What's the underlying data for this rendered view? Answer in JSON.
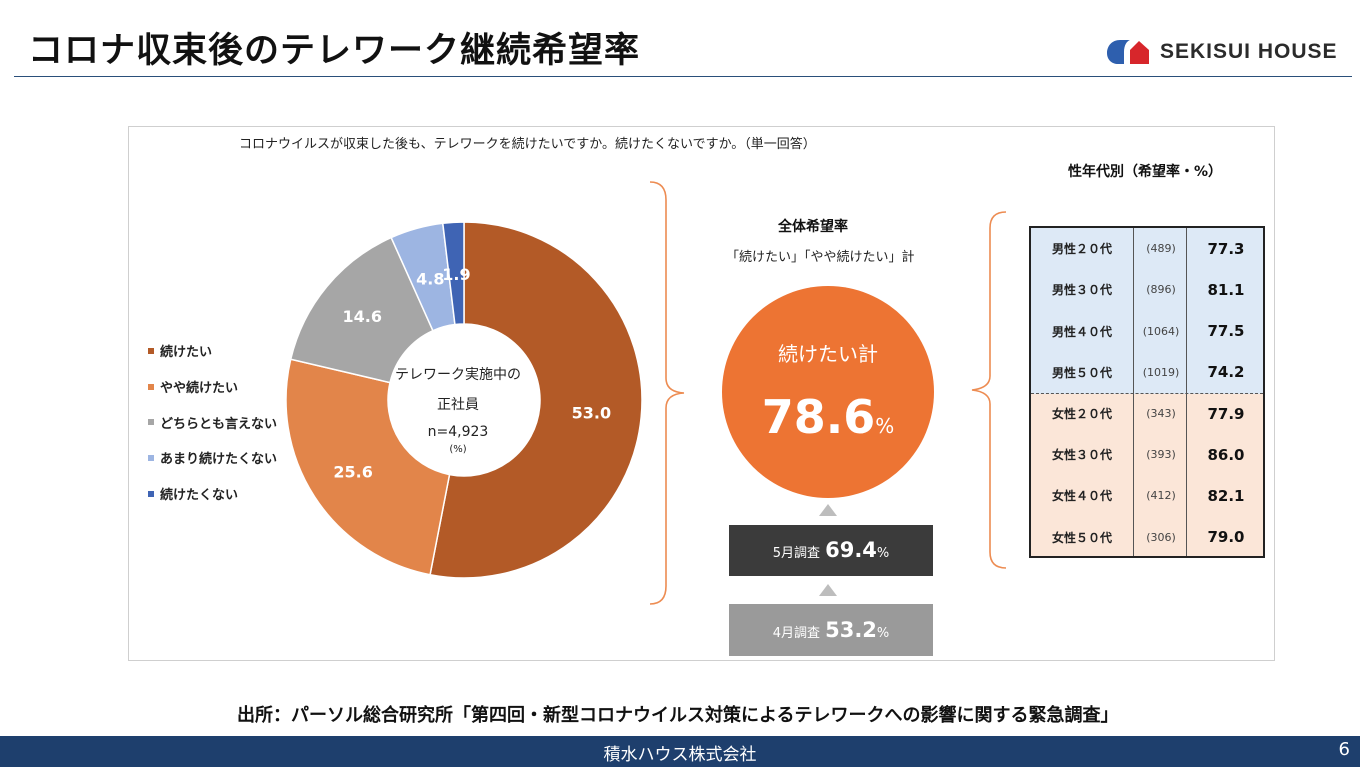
{
  "slide": {
    "title": "コロナ収束後のテレワーク継続希望率",
    "logo_text": "SEKISUI HOUSE",
    "source": "出所：パーソル総合研究所「第四回・新型コロナウイルス対策によるテレワークへの影響に関する緊急調査」",
    "footer": "積水ハウス株式会社",
    "page_number": "6",
    "colors": {
      "accent": "#ed7433",
      "footer": "#1e3f6d",
      "box_may": "#3b3b3b",
      "box_april": "#9a9a9a",
      "male_bg": "#dde9f6",
      "female_bg": "#fbe6d8"
    }
  },
  "survey": {
    "question": "コロナウイルスが収束した後も、テレワークを続けたいですか。続けたくないですか。（単一回答）",
    "center_line1": "テレワーク実施中の",
    "center_line2": "正社員",
    "center_n": "n=4,923",
    "center_unit": "(%)"
  },
  "chart_data": {
    "type": "pie",
    "title": "コロナウイルスが収束した後も、テレワークを続けたいですか。続けたくないですか。（単一回答）",
    "unit": "%",
    "categories": [
      "続けたい",
      "やや続けたい",
      "どちらとも言えない",
      "あまり続けたくない",
      "続けたくない"
    ],
    "values": [
      53.0,
      25.6,
      14.6,
      4.8,
      1.9
    ],
    "labels": [
      "53.0",
      "25.6",
      "14.6",
      "4.8",
      "1.9"
    ],
    "colors": [
      "#b35a27",
      "#e2854a",
      "#a6a6a6",
      "#9db5e2",
      "#3f64b4"
    ],
    "legend": "left"
  },
  "overall": {
    "heading": "全体希望率",
    "subheading": "「続けたい」「やや続けたい」計",
    "circle_label": "続けたい計",
    "circle_value": "78.6",
    "percent": "%",
    "may_label": "5月調査",
    "may_value": "69.4",
    "april_label": "4月調査",
    "april_value": "53.2"
  },
  "age_table": {
    "title": "性年代別（希望率・%）",
    "rows": [
      {
        "group": "男性２０代",
        "n": "(489)",
        "rate": "77.3"
      },
      {
        "group": "男性３０代",
        "n": "(896)",
        "rate": "81.1"
      },
      {
        "group": "男性４０代",
        "n": "(1064)",
        "rate": "77.5"
      },
      {
        "group": "男性５０代",
        "n": "(1019)",
        "rate": "74.2"
      },
      {
        "group": "女性２０代",
        "n": "(343)",
        "rate": "77.9"
      },
      {
        "group": "女性３０代",
        "n": "(393)",
        "rate": "86.0"
      },
      {
        "group": "女性４０代",
        "n": "(412)",
        "rate": "82.1"
      },
      {
        "group": "女性５０代",
        "n": "(306)",
        "rate": "79.0"
      }
    ]
  }
}
